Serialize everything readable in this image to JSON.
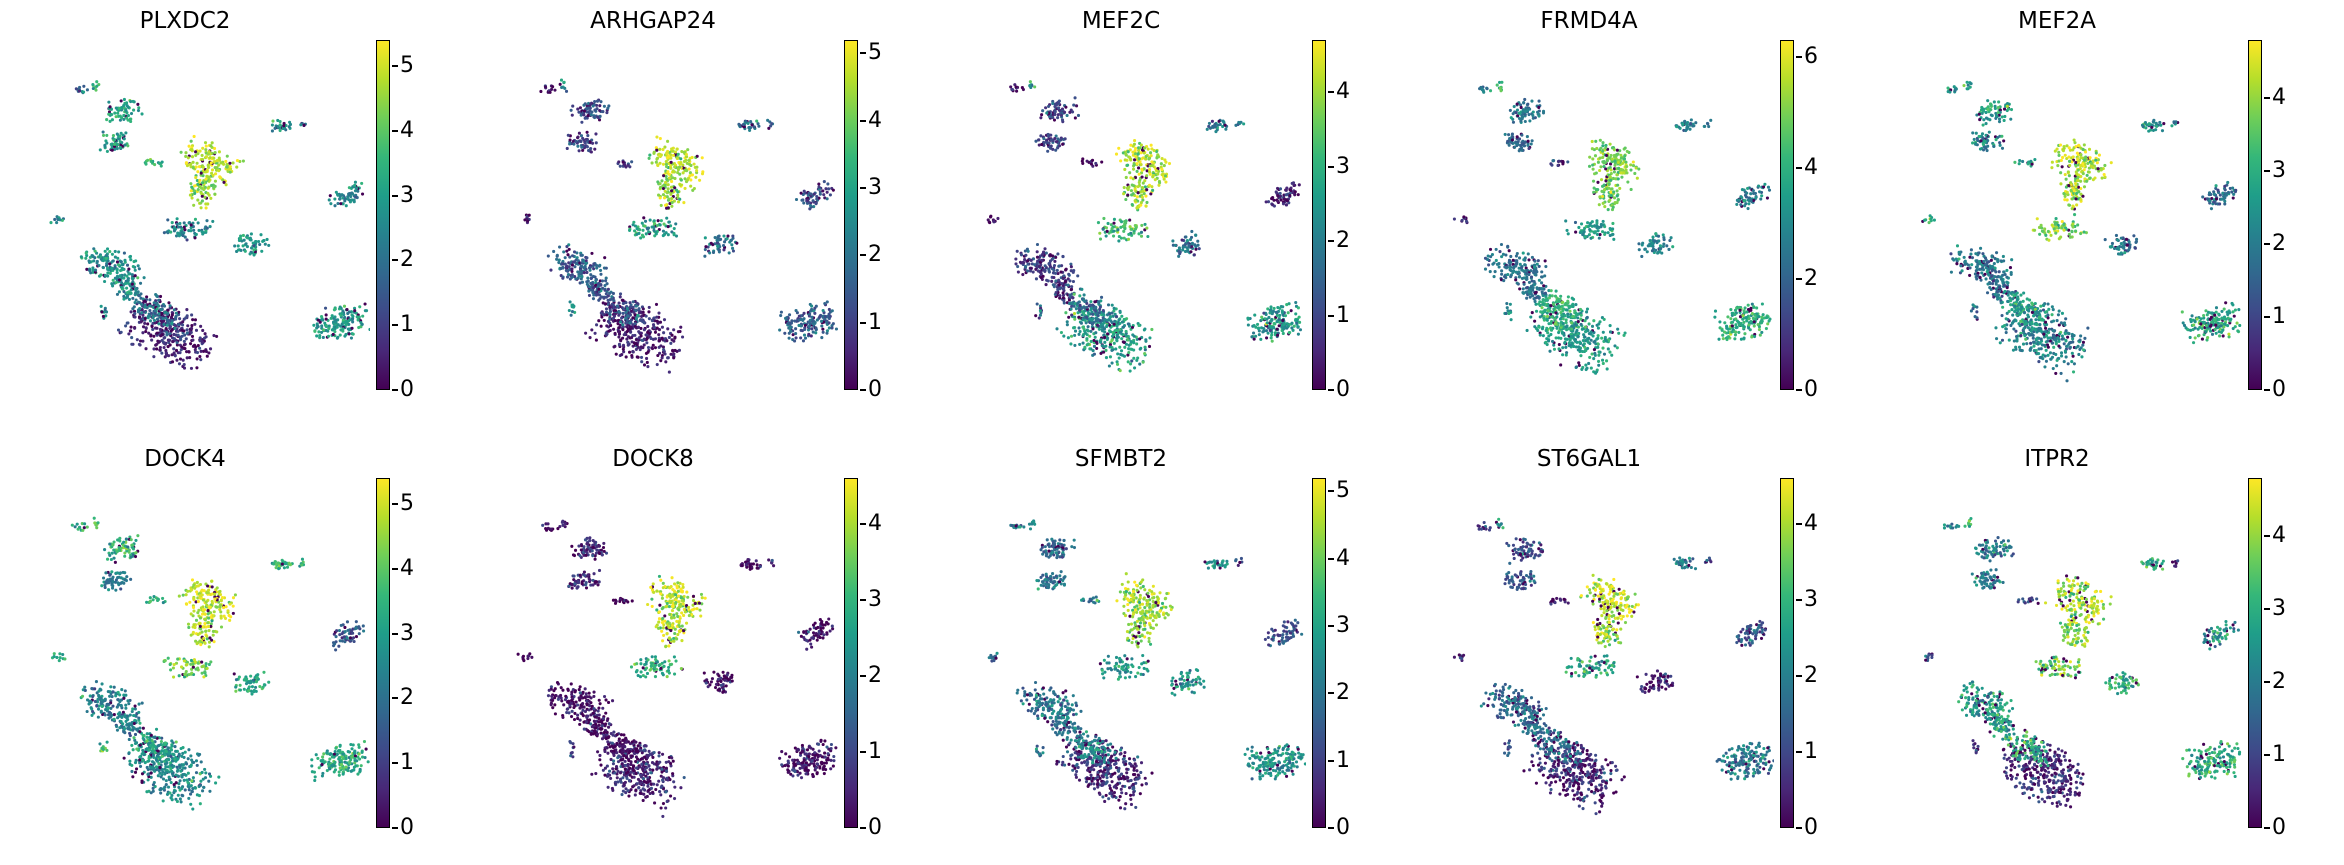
{
  "colormap": [
    "#440154",
    "#482878",
    "#3e4a89",
    "#31688e",
    "#26828e",
    "#1f9e89",
    "#35b779",
    "#6ece58",
    "#b5de2b",
    "#fde725"
  ],
  "chart_data": [
    {
      "type": "scatter",
      "title": "PLXDC2",
      "cbar_max": 5.4,
      "ticks": [
        0,
        1,
        2,
        3,
        4,
        5
      ],
      "cluster_values": [
        3.2,
        3.0,
        4.8,
        4.6,
        2.6,
        2.8,
        2.6,
        2.5,
        2.7,
        2.6,
        0.6,
        2.2,
        2.9,
        3.6,
        1.9,
        2.5,
        3.5,
        2.0,
        3.0
      ]
    },
    {
      "type": "scatter",
      "title": "ARHGAP24",
      "cbar_max": 5.2,
      "ticks": [
        0,
        1,
        2,
        3,
        4,
        5
      ],
      "cluster_values": [
        1.2,
        1.2,
        4.6,
        4.4,
        3.0,
        2.0,
        2.0,
        1.3,
        1.6,
        1.4,
        0.5,
        1.5,
        1.6,
        2.6,
        0.5,
        0.5,
        0.6,
        1.8,
        2.7
      ]
    },
    {
      "type": "scatter",
      "title": "MEF2C",
      "cbar_max": 4.7,
      "ticks": [
        0,
        1,
        2,
        3,
        4
      ],
      "cluster_values": [
        1.0,
        1.0,
        4.2,
        4.0,
        3.1,
        1.6,
        1.8,
        0.6,
        0.8,
        0.9,
        2.6,
        1.6,
        2.5,
        2.9,
        0.2,
        0.2,
        0.2,
        2.1,
        1.3
      ]
    },
    {
      "type": "scatter",
      "title": "FRMD4A",
      "cbar_max": 6.3,
      "ticks": [
        0,
        2,
        4,
        6
      ],
      "cluster_values": [
        2.5,
        2.2,
        5.0,
        4.8,
        3.5,
        2.8,
        2.6,
        2.8,
        2.4,
        2.2,
        3.5,
        4.1,
        4.0,
        4.0,
        2.6,
        1.0,
        1.0,
        2.4,
        3.4
      ]
    },
    {
      "type": "scatter",
      "title": "MEF2A",
      "cbar_max": 4.8,
      "ticks": [
        0,
        1,
        2,
        3,
        4
      ],
      "cluster_values": [
        2.6,
        2.2,
        4.3,
        4.1,
        3.8,
        2.0,
        2.4,
        1.7,
        1.9,
        1.8,
        2.2,
        2.7,
        2.9,
        2.7,
        2.6,
        2.9,
        3.0,
        2.3,
        1.7
      ]
    },
    {
      "type": "scatter",
      "title": "DOCK4",
      "cbar_max": 5.4,
      "ticks": [
        0,
        1,
        2,
        3,
        4,
        5
      ],
      "cluster_values": [
        3.5,
        2.2,
        5.0,
        4.8,
        4.2,
        3.2,
        3.6,
        1.6,
        2.3,
        2.3,
        2.6,
        3.0,
        3.3,
        4.3,
        3.3,
        3.2,
        3.3,
        3.1,
        3.4
      ]
    },
    {
      "type": "scatter",
      "title": "DOCK8",
      "cbar_max": 4.6,
      "ticks": [
        0,
        1,
        2,
        3,
        4
      ],
      "cluster_values": [
        0.5,
        0.7,
        4.2,
        4.0,
        2.8,
        0.2,
        0.2,
        0.2,
        0.2,
        0.2,
        0.5,
        0.2,
        0.2,
        0.2,
        0.2,
        0.2,
        0.2,
        0.3,
        0.8
      ]
    },
    {
      "type": "scatter",
      "title": "SFMBT2",
      "cbar_max": 5.2,
      "ticks": [
        0,
        1,
        2,
        3,
        4,
        5
      ],
      "cluster_values": [
        1.8,
        2.0,
        4.5,
        4.3,
        2.8,
        2.6,
        2.7,
        1.3,
        2.0,
        2.0,
        0.8,
        2.4,
        2.6,
        2.6,
        2.3,
        2.0,
        2.3,
        1.4,
        2.1
      ]
    },
    {
      "type": "scatter",
      "title": "ST6GAL1",
      "cbar_max": 4.6,
      "ticks": [
        0,
        1,
        2,
        3,
        4
      ],
      "cluster_values": [
        1.0,
        1.1,
        4.2,
        4.0,
        2.7,
        0.4,
        1.9,
        1.2,
        1.6,
        1.7,
        0.5,
        1.6,
        1.9,
        2.6,
        0.5,
        0.2,
        0.2,
        0.5,
        1.0
      ]
    },
    {
      "type": "scatter",
      "title": "ITPR2",
      "cbar_max": 4.8,
      "ticks": [
        0,
        1,
        2,
        3,
        4
      ],
      "cluster_values": [
        2.0,
        2.0,
        4.2,
        3.9,
        3.7,
        3.0,
        3.1,
        2.3,
        2.6,
        2.7,
        0.6,
        3.0,
        3.0,
        3.1,
        2.3,
        1.2,
        1.2,
        0.5,
        0.8
      ]
    }
  ]
}
